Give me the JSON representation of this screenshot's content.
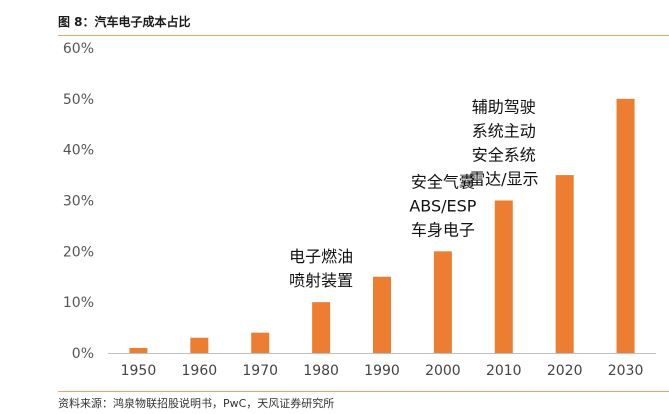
{
  "header": {
    "title": "图 8：汽车电子成本占比"
  },
  "footer": {
    "source": "资料来源：鸿泉物联招股说明书，PwC，天风证券研究所"
  },
  "chart_data": {
    "type": "bar",
    "categories": [
      "1950",
      "1960",
      "1970",
      "1980",
      "1990",
      "2000",
      "2010",
      "2020",
      "2030"
    ],
    "values": [
      1,
      3,
      4,
      10,
      15,
      20,
      30,
      35,
      50
    ],
    "ylim": [
      0,
      60
    ],
    "yticks": [
      "0%",
      "10%",
      "20%",
      "30%",
      "40%",
      "50%",
      "60%"
    ],
    "bar_color": "#ed7d31",
    "grid": false,
    "annotations": [
      {
        "category": "1980",
        "lines": [
          "电子燃油",
          "喷射装置"
        ]
      },
      {
        "category": "2000",
        "lines": [
          "安全气囊",
          "ABS/ESP",
          "车身电子"
        ]
      },
      {
        "category": "2010",
        "lines": [
          "辅助驾驶",
          "系统主动",
          "安全系统",
          "雷达/显示"
        ]
      }
    ]
  }
}
